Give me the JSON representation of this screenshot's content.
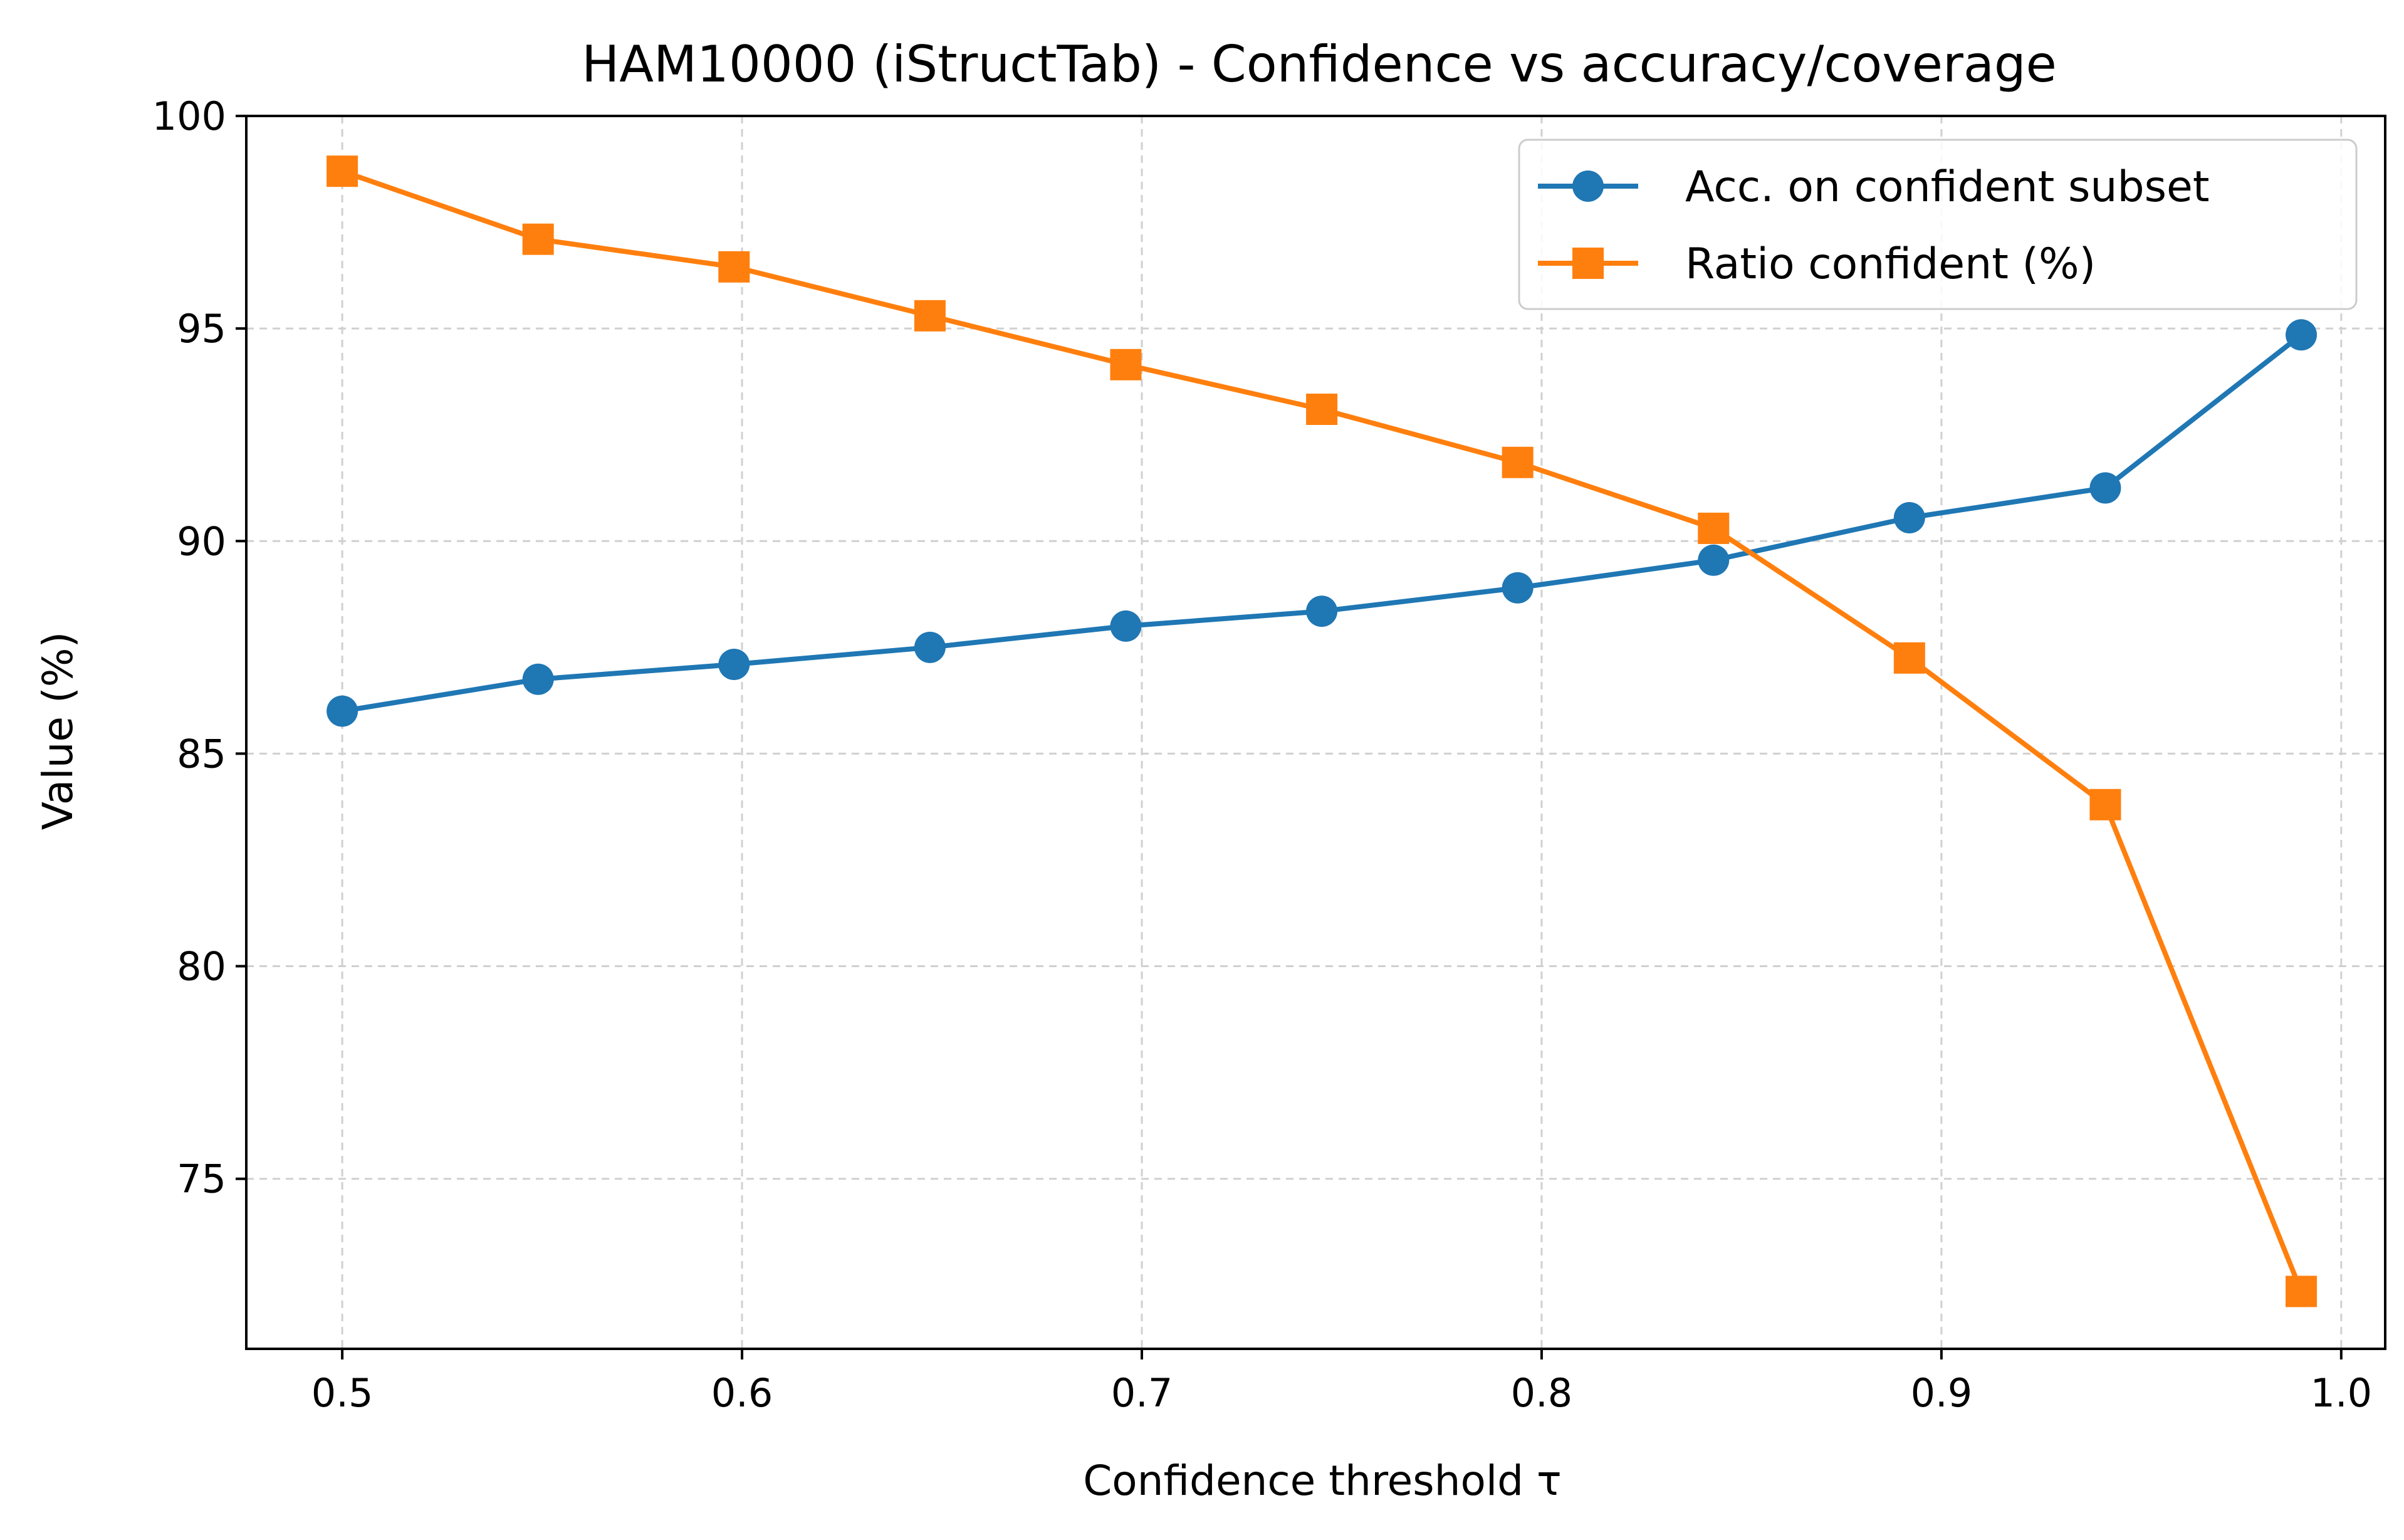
{
  "chart_data": {
    "type": "line",
    "title": "HAM10000 (iStructTab) - Confidence vs accuracy/coverage",
    "xlabel": "Confidence threshold τ",
    "ylabel": "Value (%)",
    "xlim": [
      0.476,
      1.011
    ],
    "ylim": [
      71.0,
      100.0
    ],
    "xticks": [
      0.5,
      0.6,
      0.7,
      0.8,
      0.9,
      1.0
    ],
    "xtick_labels": [
      "0.5",
      "0.6",
      "0.7",
      "0.8",
      "0.9",
      "1.0"
    ],
    "yticks": [
      75,
      80,
      85,
      90,
      95,
      100
    ],
    "ytick_labels": [
      "75",
      "80",
      "85",
      "90",
      "95",
      "100"
    ],
    "grid": true,
    "legend_position": "top-right",
    "x": [
      0.5,
      0.549,
      0.598,
      0.647,
      0.696,
      0.745,
      0.794,
      0.843,
      0.892,
      0.941,
      0.99
    ],
    "series": [
      {
        "name": "Acc. on confident subset",
        "color": "#1f77b4",
        "marker": "circle",
        "values": [
          86.0,
          86.75,
          87.1,
          87.5,
          88.0,
          88.35,
          88.9,
          89.55,
          90.55,
          91.25,
          94.85
        ]
      },
      {
        "name": "Ratio confident (%)",
        "color": "#ff7f0e",
        "marker": "square",
        "values": [
          98.7,
          97.1,
          96.45,
          95.3,
          94.15,
          93.1,
          91.85,
          90.3,
          87.25,
          83.8,
          72.35
        ]
      }
    ]
  }
}
